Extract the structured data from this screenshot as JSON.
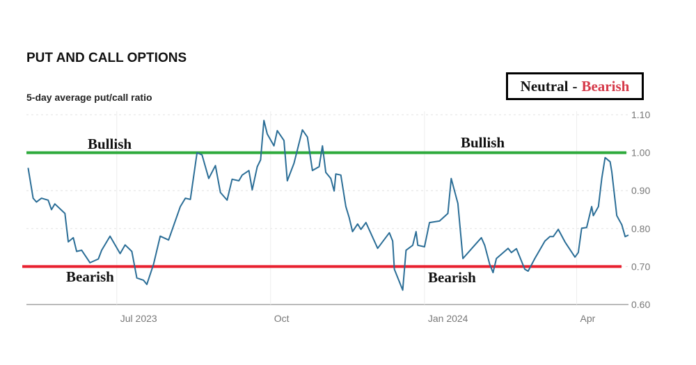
{
  "header": {
    "title": "PUT AND CALL OPTIONS",
    "subtitle": "5-day average put/call ratio"
  },
  "legend_box": {
    "neutral_label": "Neutral",
    "separator": "-",
    "bearish_label": "Bearish",
    "neutral_color": "#111111",
    "bearish_color": "#d63a4a"
  },
  "chart_data": {
    "type": "line",
    "title": "PUT AND CALL OPTIONS",
    "subtitle": "5-day average put/call ratio",
    "xlabel": "",
    "ylabel": "",
    "xlim": [
      "2023-05-08",
      "2024-05-02"
    ],
    "ylim": [
      0.6,
      1.1
    ],
    "y_axis_position": "right",
    "y_ticks": [
      "1.10",
      "1.00",
      "0.90",
      "0.80",
      "0.70",
      "0.60"
    ],
    "x_ticks": [
      {
        "date": "2023-07-01",
        "label": "Jul 2023"
      },
      {
        "date": "2023-10-01",
        "label": "Oct"
      },
      {
        "date": "2024-01-01",
        "label": "Jan 2024"
      },
      {
        "date": "2024-04-01",
        "label": "Apr"
      }
    ],
    "grid": true,
    "line_color": "#2a6d96",
    "reference_lines": [
      {
        "value": 1.0,
        "color": "#2eaa3c",
        "label": "Bullish"
      },
      {
        "value": 0.7,
        "color": "#e8202f",
        "label": "Bearish"
      }
    ],
    "annotations": {
      "bullish_left": "Bullish",
      "bullish_right": "Bullish",
      "bearish_left": "Bearish",
      "bearish_right": "Bearish"
    },
    "series": [
      {
        "x": [
          "2023-05-09",
          "2023-05-12",
          "2023-05-14",
          "2023-05-17",
          "2023-05-21",
          "2023-05-23",
          "2023-05-25",
          "2023-05-31",
          "2023-06-02",
          "2023-06-05",
          "2023-06-07",
          "2023-06-10",
          "2023-06-15",
          "2023-06-20",
          "2023-06-22",
          "2023-06-27",
          "2023-07-03",
          "2023-07-06",
          "2023-07-10",
          "2023-07-13",
          "2023-07-17",
          "2023-07-19",
          "2023-07-23",
          "2023-07-27",
          "2023-08-01",
          "2023-08-08",
          "2023-08-11",
          "2023-08-14",
          "2023-08-18",
          "2023-08-21",
          "2023-08-25",
          "2023-08-29",
          "2023-09-01",
          "2023-09-05",
          "2023-09-08",
          "2023-09-12",
          "2023-09-14",
          "2023-09-18",
          "2023-09-20",
          "2023-09-23",
          "2023-09-25",
          "2023-09-27",
          "2023-09-29",
          "2023-10-03",
          "2023-10-05",
          "2023-10-09",
          "2023-10-11",
          "2023-10-15",
          "2023-10-20",
          "2023-10-23",
          "2023-10-26",
          "2023-10-30",
          "2023-11-01",
          "2023-11-03",
          "2023-11-06",
          "2023-11-08",
          "2023-11-09",
          "2023-11-12",
          "2023-11-15",
          "2023-11-17",
          "2023-11-19",
          "2023-11-22",
          "2023-11-24",
          "2023-11-27",
          "2023-12-04",
          "2023-12-11",
          "2023-12-13",
          "2023-12-14",
          "2023-12-19",
          "2023-12-21",
          "2023-12-25",
          "2023-12-27",
          "2023-12-28",
          "2024-01-01",
          "2024-01-04",
          "2024-01-10",
          "2024-01-15",
          "2024-01-17",
          "2024-01-21",
          "2024-01-24",
          "2024-01-31",
          "2024-02-04",
          "2024-02-06",
          "2024-02-09",
          "2024-02-11",
          "2024-02-13",
          "2024-02-20",
          "2024-02-22",
          "2024-02-25",
          "2024-03-01",
          "2024-03-03",
          "2024-03-07",
          "2024-03-13",
          "2024-03-16",
          "2024-03-18",
          "2024-03-21",
          "2024-03-25",
          "2024-03-31",
          "2024-04-02",
          "2024-04-04",
          "2024-04-07",
          "2024-04-10",
          "2024-04-11",
          "2024-04-14",
          "2024-04-16",
          "2024-04-18",
          "2024-04-21",
          "2024-04-22",
          "2024-04-25",
          "2024-04-28",
          "2024-04-30",
          "2024-05-02"
        ],
        "y": [
          0.96,
          0.88,
          0.87,
          0.88,
          0.875,
          0.85,
          0.865,
          0.84,
          0.765,
          0.776,
          0.74,
          0.743,
          0.71,
          0.72,
          0.743,
          0.78,
          0.734,
          0.757,
          0.74,
          0.67,
          0.664,
          0.653,
          0.706,
          0.78,
          0.77,
          0.858,
          0.88,
          0.877,
          1.0,
          0.994,
          0.932,
          0.966,
          0.895,
          0.875,
          0.93,
          0.926,
          0.941,
          0.953,
          0.902,
          0.963,
          0.981,
          1.085,
          1.049,
          1.018,
          1.058,
          1.032,
          0.926,
          0.972,
          1.06,
          1.041,
          0.953,
          0.963,
          1.018,
          0.948,
          0.932,
          0.899,
          0.944,
          0.941,
          0.858,
          0.829,
          0.792,
          0.812,
          0.798,
          0.816,
          0.748,
          0.789,
          0.767,
          0.693,
          0.638,
          0.743,
          0.756,
          0.792,
          0.756,
          0.752,
          0.816,
          0.82,
          0.84,
          0.932,
          0.866,
          0.721,
          0.756,
          0.776,
          0.756,
          0.706,
          0.684,
          0.721,
          0.748,
          0.737,
          0.747,
          0.693,
          0.688,
          0.721,
          0.767,
          0.779,
          0.779,
          0.798,
          0.765,
          0.725,
          0.737,
          0.801,
          0.803,
          0.858,
          0.834,
          0.858,
          0.932,
          0.987,
          0.976,
          0.95,
          0.834,
          0.81,
          0.779,
          0.783
        ]
      }
    ]
  }
}
